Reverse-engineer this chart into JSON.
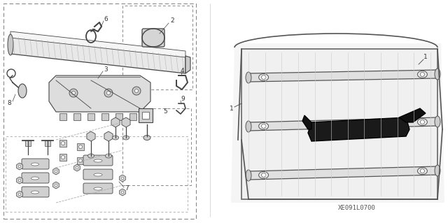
{
  "background_color": "#ffffff",
  "figure_width": 6.4,
  "figure_height": 3.19,
  "dpi": 100,
  "diagram_code": "XE091L0700",
  "text_color": "#333333",
  "line_color": "#444444",
  "dashed_color": "#888888",
  "gray_fill": "#d8d8d8",
  "light_gray": "#eeeeee"
}
